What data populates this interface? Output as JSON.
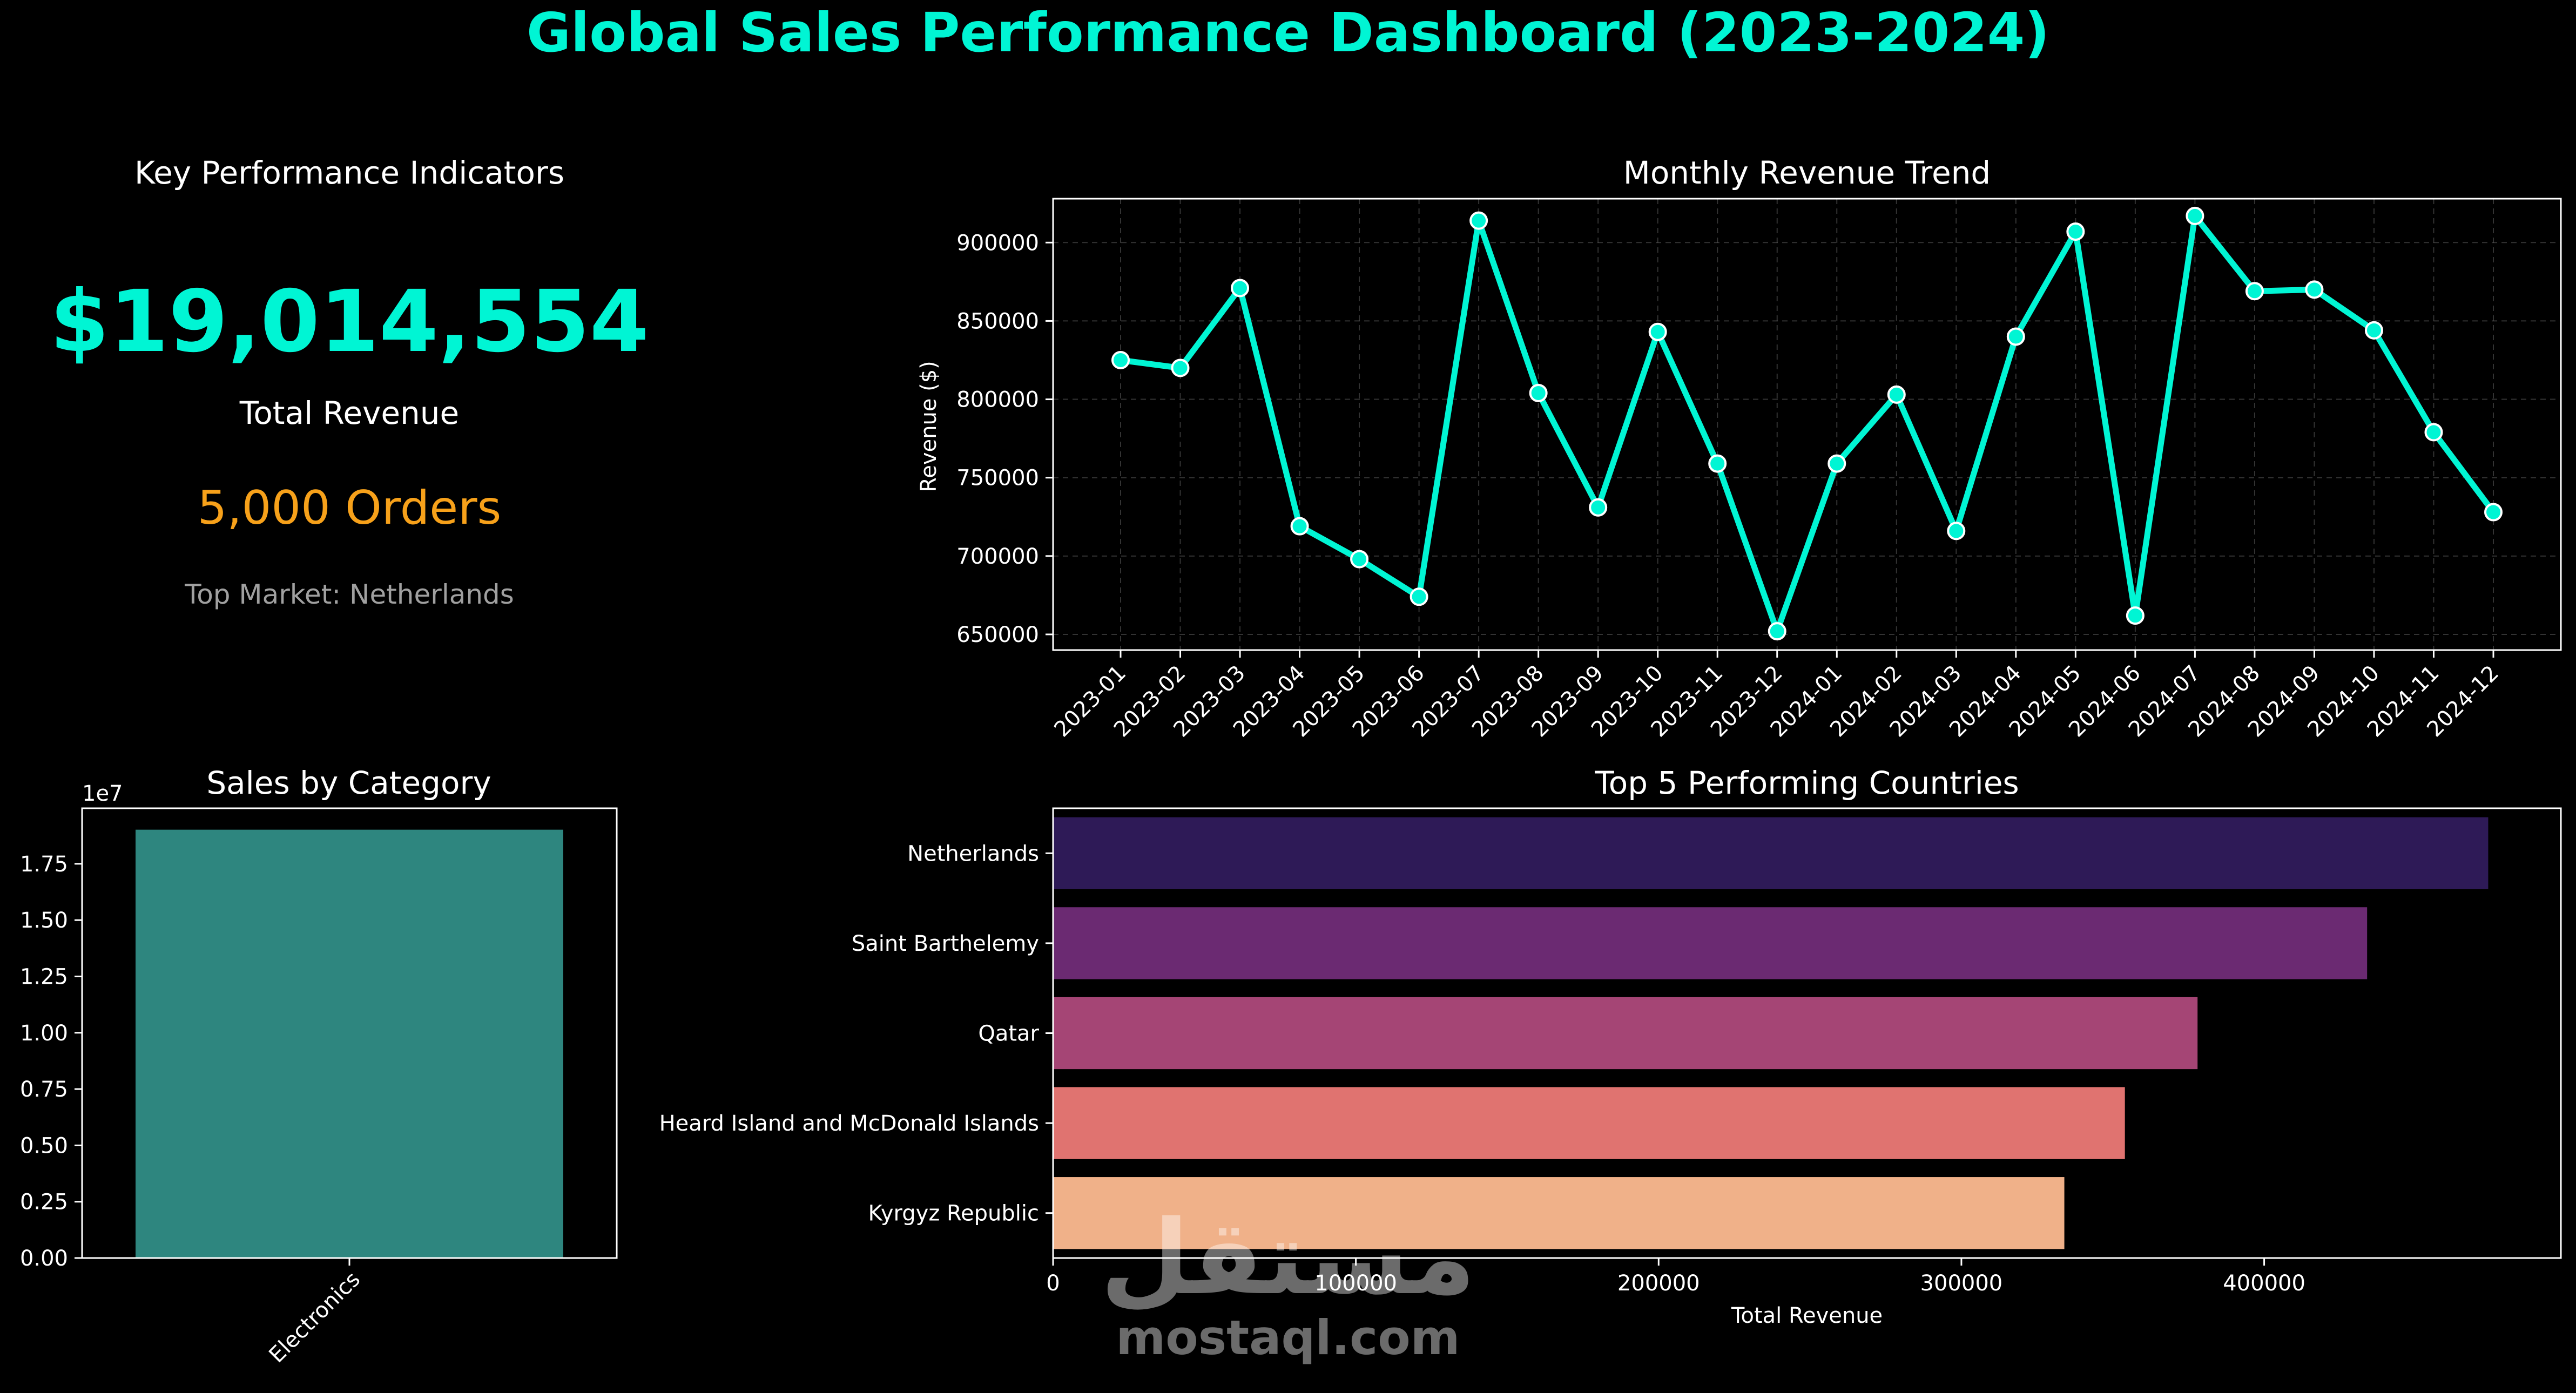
{
  "title": "Global Sales Performance Dashboard (2023-2024)",
  "colors": {
    "background": "#000000",
    "accent": "#00f5d4",
    "orders": "#f7a11a",
    "muted": "#a0a0a0",
    "line": "#00f5d4",
    "category_bar": "#2e867f",
    "country_bars": [
      "#2e1a57",
      "#6b2a72",
      "#a54575",
      "#e07370",
      "#f0b189"
    ]
  },
  "kpi": {
    "title": "Key Performance Indicators",
    "total_revenue": "$19,014,554",
    "total_revenue_label": "Total Revenue",
    "orders": "5,000 Orders",
    "top_market": "Top Market: Netherlands"
  },
  "watermark": {
    "arabic": "مستقل",
    "latin": "mostaql.com"
  },
  "chart_data": [
    {
      "id": "monthly",
      "type": "line",
      "title": "Monthly Revenue Trend",
      "xlabel": "",
      "ylabel": "Revenue ($)",
      "x": [
        "2023-01",
        "2023-02",
        "2023-03",
        "2023-04",
        "2023-05",
        "2023-06",
        "2023-07",
        "2023-08",
        "2023-09",
        "2023-10",
        "2023-11",
        "2023-12",
        "2024-01",
        "2024-02",
        "2024-03",
        "2024-04",
        "2024-05",
        "2024-06",
        "2024-07",
        "2024-08",
        "2024-09",
        "2024-10",
        "2024-11",
        "2024-12"
      ],
      "values": [
        825000,
        820000,
        871000,
        719000,
        698000,
        674000,
        914000,
        804000,
        731000,
        843000,
        759000,
        652000,
        759000,
        803000,
        716000,
        840000,
        907000,
        662000,
        917000,
        869000,
        870000,
        844000,
        779000,
        728000
      ],
      "ylim": [
        640000,
        928000
      ],
      "yticks": [
        650000,
        700000,
        750000,
        800000,
        850000,
        900000
      ],
      "grid": true
    },
    {
      "id": "category",
      "type": "bar",
      "title": "Sales by Category",
      "xlabel": "",
      "ylabel": "",
      "categories": [
        "Electronics"
      ],
      "values": [
        19014554
      ],
      "ylim": [
        0,
        19965282
      ],
      "yticks": [
        0,
        2500000,
        5000000,
        7500000,
        10000000,
        12500000,
        15000000,
        17500000
      ],
      "ytick_labels": [
        "0.00",
        "0.25",
        "0.50",
        "0.75",
        "1.00",
        "1.25",
        "1.50",
        "1.75"
      ],
      "offset_label": "1e7"
    },
    {
      "id": "countries",
      "type": "bar",
      "orientation": "horizontal",
      "title": "Top 5 Performing Countries",
      "xlabel": "Total Revenue",
      "ylabel": "",
      "categories": [
        "Netherlands",
        "Saint Barthelemy",
        "Qatar",
        "Heard Island and McDonald Islands",
        "Kyrgyz Republic"
      ],
      "values": [
        474000,
        434000,
        378000,
        354000,
        334000
      ],
      "xlim": [
        0,
        498000
      ],
      "xticks": [
        0,
        100000,
        200000,
        300000,
        400000
      ]
    }
  ]
}
